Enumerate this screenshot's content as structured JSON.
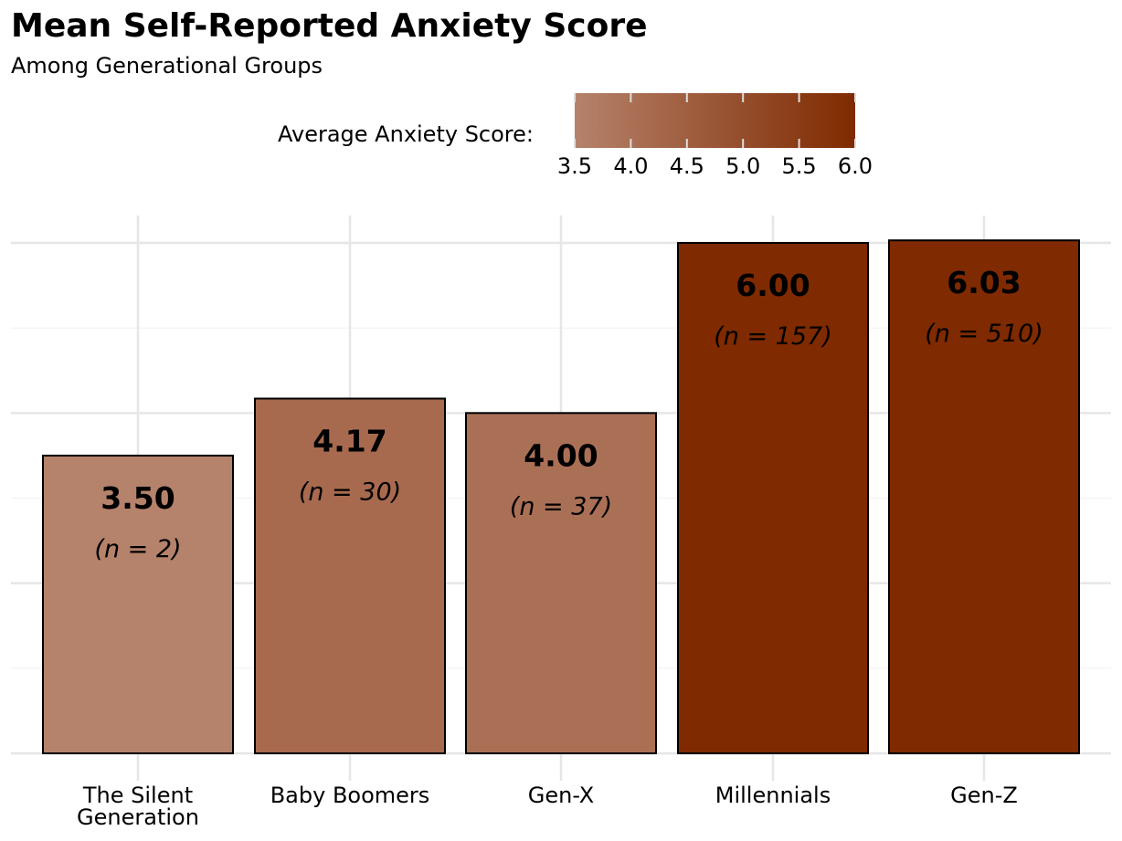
{
  "chart_data": {
    "type": "bar",
    "title": "Mean Self-Reported Anxiety Score",
    "subtitle": "Among Generational Groups",
    "xlabel": "",
    "ylabel": "",
    "categories": [
      "The Silent Generation",
      "Baby Boomers",
      "Gen-X",
      "Millennials",
      "Gen-Z"
    ],
    "category_label_lines": [
      [
        "The Silent",
        "Generation"
      ],
      [
        "Baby Boomers"
      ],
      [
        "Gen-X"
      ],
      [
        "Millennials"
      ],
      [
        "Gen-Z"
      ]
    ],
    "values": [
      3.5,
      4.17,
      4.0,
      6.0,
      6.03
    ],
    "value_labels": [
      "3.50",
      "4.17",
      "4.00",
      "6.00",
      "6.03"
    ],
    "n_labels": [
      "(n = 2)",
      "(n = 30)",
      "(n = 37)",
      "(n = 157)",
      "(n = 510)"
    ],
    "ylim": [
      0,
      6.3
    ],
    "y_gridlines_major": [
      0,
      2,
      4,
      6
    ],
    "y_gridlines_minor": [
      1,
      3,
      5
    ],
    "y_tick_labels_shown": false,
    "grid": true,
    "legend": {
      "title": "Average Anxiety Score:",
      "type": "colorbar",
      "placement": "top",
      "range": [
        3.5,
        6.0
      ],
      "ticks": [
        "3.5",
        "4.0",
        "4.5",
        "5.0",
        "5.5",
        "6.0"
      ],
      "tick_values": [
        3.5,
        4.0,
        4.5,
        5.0,
        5.5,
        6.0
      ],
      "color_low": "#b5826b",
      "color_high": "#7f2a00"
    },
    "colors": {
      "gridline": "#e6e6e6",
      "bar_outline": "#000000",
      "label_text": "#000000"
    }
  }
}
